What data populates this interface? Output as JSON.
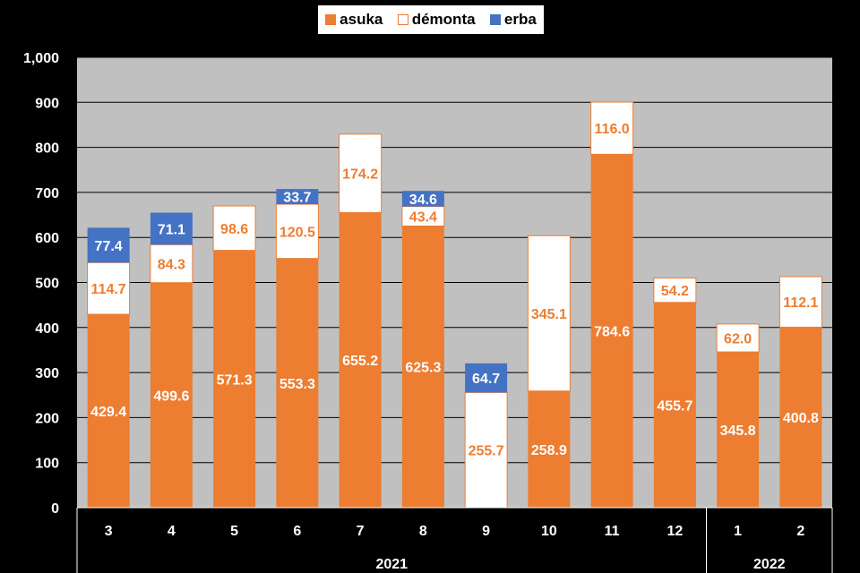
{
  "legend": [
    {
      "name": "asuka",
      "color": "#ED7D31"
    },
    {
      "name": "démonta",
      "color": "#FFFFFF",
      "border": "#ED7D31"
    },
    {
      "name": "erba",
      "color": "#4472C4"
    }
  ],
  "chart_data": {
    "type": "bar",
    "stacked": true,
    "categories": [
      "3",
      "4",
      "5",
      "6",
      "7",
      "8",
      "9",
      "10",
      "11",
      "12",
      "1",
      "2"
    ],
    "category_groups": [
      {
        "label": "2021",
        "from": 0,
        "to": 9
      },
      {
        "label": "2022",
        "from": 10,
        "to": 11
      }
    ],
    "series": [
      {
        "name": "asuka",
        "color": "#ED7D31",
        "label_color": "#FFFFFF",
        "values": [
          429.4,
          499.6,
          571.3,
          553.3,
          655.2,
          625.3,
          null,
          258.9,
          784.6,
          455.7,
          345.8,
          400.8
        ]
      },
      {
        "name": "démonta",
        "color": "#FFFFFF",
        "label_color": "#ED7D31",
        "values": [
          114.7,
          84.3,
          98.6,
          120.5,
          174.2,
          43.4,
          255.7,
          345.1,
          116.0,
          54.2,
          62.0,
          112.1
        ]
      },
      {
        "name": "erba",
        "color": "#4472C4",
        "label_color": "#FFFFFF",
        "values": [
          77.4,
          71.1,
          null,
          33.7,
          null,
          34.6,
          64.7,
          null,
          null,
          null,
          null,
          null
        ]
      }
    ],
    "yticks": [
      "0",
      "100",
      "200",
      "300",
      "400",
      "500",
      "600",
      "700",
      "800",
      "900",
      "1,000"
    ],
    "ylim": [
      0,
      1000
    ],
    "grid": true,
    "plot_background": "#C0C0C0",
    "legend_position": "top-center"
  }
}
